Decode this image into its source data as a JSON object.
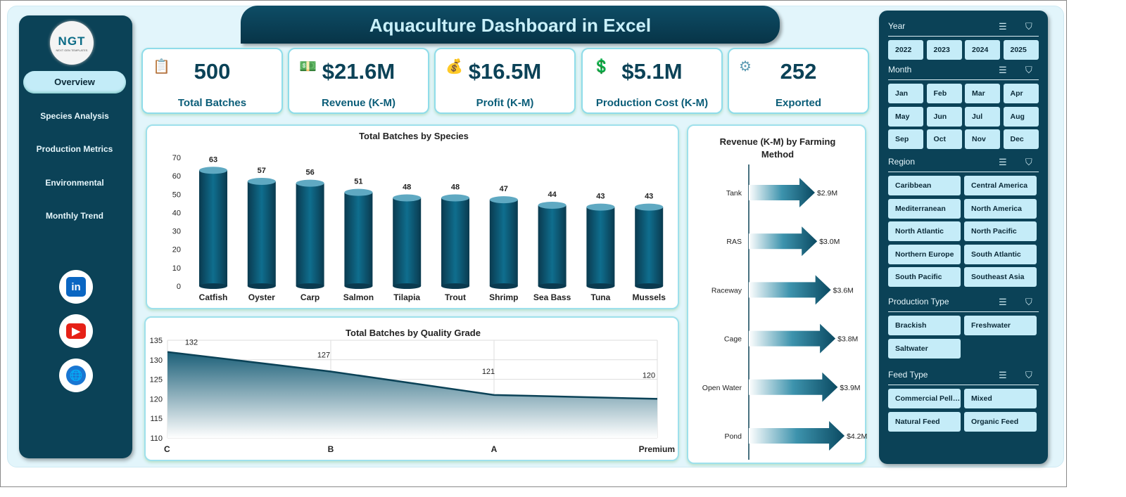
{
  "title": "Aquaculture Dashboard in Excel",
  "logo": {
    "text": "NGT",
    "subtitle": "NEXT GEN TEMPLATES"
  },
  "nav": [
    "Overview",
    "Species Analysis",
    "Production Metrics",
    "Environmental",
    "Monthly Trend"
  ],
  "nav_active": "Overview",
  "social": [
    {
      "icon": "linkedin-icon",
      "label": "in",
      "color": "#0a66c2"
    },
    {
      "icon": "youtube-icon",
      "label": "▶",
      "color": "#e62117"
    },
    {
      "icon": "globe-icon",
      "label": "🌐",
      "color": "#1976d2"
    }
  ],
  "kpis": [
    {
      "icon": "clipboard-icon",
      "value": "500",
      "label": "Total Batches"
    },
    {
      "icon": "money-icon",
      "value": "$21.6M",
      "label": "Revenue (K-M)"
    },
    {
      "icon": "money-bag-icon",
      "value": "$16.5M",
      "label": "Profit (K-M)"
    },
    {
      "icon": "cost-icon",
      "value": "$5.1M",
      "label": "Production Cost (K-M)"
    },
    {
      "icon": "export-icon",
      "value": "252",
      "label": "Exported"
    }
  ],
  "colors": {
    "dark": "#0b4257",
    "bar": "#0b5d78",
    "light": "#c5ecf8",
    "bg": "#e2f5fb"
  },
  "chart_data": [
    {
      "type": "bar",
      "title": "Total Batches by Species",
      "categories": [
        "Catfish",
        "Oyster",
        "Carp",
        "Salmon",
        "Tilapia",
        "Trout",
        "Shrimp",
        "Sea Bass",
        "Tuna",
        "Mussels"
      ],
      "values": [
        63,
        57,
        56,
        51,
        48,
        48,
        47,
        44,
        43,
        43
      ],
      "ylim": [
        0,
        70
      ],
      "yticks": [
        0,
        10,
        20,
        30,
        40,
        50,
        60,
        70
      ],
      "grid": false
    },
    {
      "type": "area",
      "title": "Total Batches by Quality Grade",
      "categories": [
        "C",
        "B",
        "A",
        "Premium"
      ],
      "values": [
        132,
        127,
        121,
        120
      ],
      "ylim": [
        110,
        135
      ],
      "yticks": [
        110,
        115,
        120,
        125,
        130,
        135
      ],
      "grid": true
    },
    {
      "type": "bar",
      "orientation": "horizontal",
      "title": "Revenue (K-M) by Farming Method",
      "categories": [
        "Tank",
        "RAS",
        "Raceway",
        "Cage",
        "Open Water",
        "Pond"
      ],
      "values": [
        2.9,
        3.0,
        3.6,
        3.8,
        3.9,
        4.2
      ],
      "labels": [
        "$2.9M",
        "$3.0M",
        "$3.6M",
        "$3.8M",
        "$3.9M",
        "$4.2M"
      ]
    }
  ],
  "slicers": [
    {
      "title": "Year",
      "items": [
        "2022",
        "2023",
        "2024",
        "2025"
      ]
    },
    {
      "title": "Month",
      "items": [
        "Jan",
        "Feb",
        "Mar",
        "Apr",
        "May",
        "Jun",
        "Jul",
        "Aug",
        "Sep",
        "Oct",
        "Nov",
        "Dec"
      ]
    },
    {
      "title": "Region",
      "items": [
        "Caribbean",
        "Central America",
        "Mediterranean",
        "North America",
        "North Atlantic",
        "North Pacific",
        "Northern Europe",
        "South Atlantic",
        "South Pacific",
        "Southeast Asia"
      ]
    },
    {
      "title": "Production Type",
      "items": [
        "Brackish",
        "Freshwater",
        "Saltwater"
      ]
    },
    {
      "title": "Feed Type",
      "items": [
        "Commercial Pellets",
        "Mixed",
        "Natural Feed",
        "Organic Feed"
      ]
    }
  ]
}
